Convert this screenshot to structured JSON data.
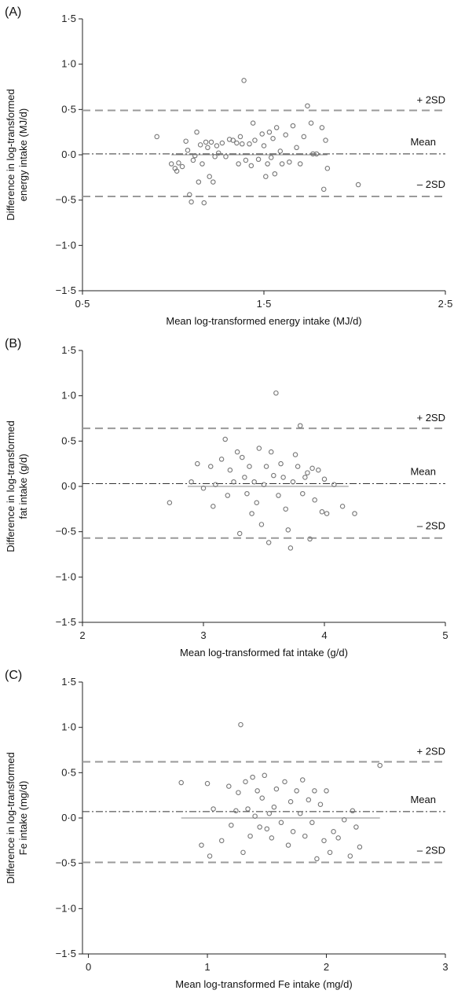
{
  "chart_data": [
    {
      "type": "scatter",
      "panel_label": "(A)",
      "xlabel": "Mean log-transformed energy intake (MJ/d)",
      "ylabel_lines": [
        "Difference in log-transformed",
        "energy intake (MJ/d)"
      ],
      "xlim": [
        0.5,
        2.5
      ],
      "ylim": [
        -1.5,
        1.5
      ],
      "xticks": [
        0.5,
        1.5,
        2.5
      ],
      "xtick_labels": [
        "0·5",
        "1·5",
        "2·5"
      ],
      "yticks": [
        -1.5,
        -1.0,
        -0.5,
        0.0,
        0.5,
        1.0,
        1.5
      ],
      "ytick_labels": [
        "−1·5",
        "−1·0",
        "−0·5",
        "0·0",
        "0·5",
        "1·0",
        "1·5"
      ],
      "reference_lines": {
        "upper": {
          "value": 0.49,
          "label": "+ 2SD"
        },
        "mean": {
          "value": 0.01,
          "label": "Mean"
        },
        "lower": {
          "value": -0.46,
          "label": "– 2SD"
        }
      },
      "zero_line": [
        0.99,
        1.85
      ],
      "points": [
        [
          0.91,
          0.2
        ],
        [
          0.99,
          -0.1
        ],
        [
          1.01,
          -0.15
        ],
        [
          1.02,
          -0.18
        ],
        [
          1.03,
          -0.09
        ],
        [
          1.05,
          -0.13
        ],
        [
          1.07,
          0.15
        ],
        [
          1.08,
          0.05
        ],
        [
          1.09,
          -0.44
        ],
        [
          1.1,
          -0.52
        ],
        [
          1.11,
          -0.06
        ],
        [
          1.12,
          -0.01
        ],
        [
          1.13,
          0.25
        ],
        [
          1.14,
          -0.3
        ],
        [
          1.15,
          0.11
        ],
        [
          1.16,
          -0.1
        ],
        [
          1.17,
          -0.53
        ],
        [
          1.18,
          0.14
        ],
        [
          1.19,
          0.08
        ],
        [
          1.2,
          -0.24
        ],
        [
          1.21,
          0.14
        ],
        [
          1.22,
          -0.3
        ],
        [
          1.23,
          -0.02
        ],
        [
          1.24,
          0.1
        ],
        [
          1.25,
          0.02
        ],
        [
          1.27,
          0.13
        ],
        [
          1.29,
          -0.02
        ],
        [
          1.31,
          0.17
        ],
        [
          1.33,
          0.16
        ],
        [
          1.35,
          0.13
        ],
        [
          1.36,
          -0.1
        ],
        [
          1.37,
          0.2
        ],
        [
          1.38,
          0.12
        ],
        [
          1.39,
          0.82
        ],
        [
          1.4,
          -0.06
        ],
        [
          1.42,
          0.12
        ],
        [
          1.43,
          -0.12
        ],
        [
          1.44,
          0.35
        ],
        [
          1.45,
          0.16
        ],
        [
          1.47,
          -0.05
        ],
        [
          1.49,
          0.23
        ],
        [
          1.5,
          0.1
        ],
        [
          1.51,
          -0.24
        ],
        [
          1.52,
          -0.1
        ],
        [
          1.53,
          0.25
        ],
        [
          1.54,
          -0.03
        ],
        [
          1.55,
          0.18
        ],
        [
          1.56,
          -0.21
        ],
        [
          1.57,
          0.3
        ],
        [
          1.59,
          0.04
        ],
        [
          1.6,
          -0.1
        ],
        [
          1.62,
          0.22
        ],
        [
          1.64,
          -0.08
        ],
        [
          1.66,
          0.32
        ],
        [
          1.68,
          0.08
        ],
        [
          1.7,
          -0.1
        ],
        [
          1.72,
          0.2
        ],
        [
          1.74,
          0.54
        ],
        [
          1.76,
          0.35
        ],
        [
          1.77,
          0.01
        ],
        [
          1.79,
          0.01
        ],
        [
          1.82,
          0.3
        ],
        [
          1.83,
          -0.38
        ],
        [
          1.84,
          0.16
        ],
        [
          1.85,
          -0.15
        ],
        [
          2.02,
          -0.33
        ]
      ]
    },
    {
      "type": "scatter",
      "panel_label": "(B)",
      "xlabel": "Mean log-transformed fat intake (g/d)",
      "ylabel_lines": [
        "Difference in log-transformed",
        "fat intake (g/d)"
      ],
      "xlim": [
        2,
        5
      ],
      "ylim": [
        -1.5,
        1.5
      ],
      "xticks": [
        2,
        3,
        4,
        5
      ],
      "xtick_labels": [
        "2",
        "3",
        "4",
        "5"
      ],
      "yticks": [
        -1.5,
        -1.0,
        -0.5,
        0.0,
        0.5,
        1.0,
        1.5
      ],
      "ytick_labels": [
        "−1·5",
        "−1·0",
        "−0·5",
        "0·0",
        "0·5",
        "1·0",
        "1·5"
      ],
      "reference_lines": {
        "upper": {
          "value": 0.64,
          "label": "+ 2SD"
        },
        "mean": {
          "value": 0.03,
          "label": "Mean"
        },
        "lower": {
          "value": -0.57,
          "label": "– 2SD"
        }
      },
      "zero_line": [
        2.87,
        4.2
      ],
      "points": [
        [
          2.72,
          -0.18
        ],
        [
          2.9,
          0.05
        ],
        [
          2.95,
          0.25
        ],
        [
          3.0,
          -0.02
        ],
        [
          3.06,
          0.22
        ],
        [
          3.08,
          -0.22
        ],
        [
          3.1,
          0.02
        ],
        [
          3.15,
          0.3
        ],
        [
          3.18,
          0.52
        ],
        [
          3.2,
          -0.1
        ],
        [
          3.22,
          0.18
        ],
        [
          3.25,
          0.05
        ],
        [
          3.28,
          0.38
        ],
        [
          3.3,
          -0.52
        ],
        [
          3.32,
          0.32
        ],
        [
          3.34,
          0.1
        ],
        [
          3.36,
          -0.08
        ],
        [
          3.38,
          0.22
        ],
        [
          3.4,
          -0.3
        ],
        [
          3.42,
          0.05
        ],
        [
          3.44,
          -0.18
        ],
        [
          3.46,
          0.42
        ],
        [
          3.48,
          -0.42
        ],
        [
          3.5,
          0.02
        ],
        [
          3.52,
          0.22
        ],
        [
          3.54,
          -0.62
        ],
        [
          3.56,
          0.38
        ],
        [
          3.58,
          0.12
        ],
        [
          3.6,
          1.03
        ],
        [
          3.62,
          -0.1
        ],
        [
          3.64,
          0.25
        ],
        [
          3.66,
          0.1
        ],
        [
          3.68,
          -0.25
        ],
        [
          3.7,
          -0.48
        ],
        [
          3.72,
          -0.68
        ],
        [
          3.74,
          0.05
        ],
        [
          3.76,
          0.35
        ],
        [
          3.78,
          0.22
        ],
        [
          3.8,
          0.67
        ],
        [
          3.82,
          -0.08
        ],
        [
          3.84,
          0.1
        ],
        [
          3.86,
          0.15
        ],
        [
          3.88,
          -0.58
        ],
        [
          3.9,
          0.2
        ],
        [
          3.92,
          -0.15
        ],
        [
          3.95,
          0.18
        ],
        [
          3.98,
          -0.28
        ],
        [
          4.0,
          0.08
        ],
        [
          4.02,
          -0.3
        ],
        [
          4.08,
          0.02
        ],
        [
          4.15,
          -0.22
        ],
        [
          4.25,
          -0.3
        ]
      ]
    },
    {
      "type": "scatter",
      "panel_label": "(C)",
      "xlabel": "Mean log-transformed Fe intake (mg/d)",
      "ylabel_lines": [
        "Difference in log-transformed",
        "Fe intake (mg/d)"
      ],
      "xlim": [
        -0.05,
        3
      ],
      "ylim": [
        -1.5,
        1.5
      ],
      "xticks": [
        0,
        1,
        2,
        3
      ],
      "xtick_labels": [
        "0",
        "1",
        "2",
        "3"
      ],
      "yticks": [
        -1.5,
        -1.0,
        -0.5,
        0.0,
        0.5,
        1.0,
        1.5
      ],
      "ytick_labels": [
        "−1·5",
        "−1·0",
        "−0·5",
        "0·0",
        "0·5",
        "1·0",
        "1·5"
      ],
      "reference_lines": {
        "upper": {
          "value": 0.62,
          "label": "+ 2SD"
        },
        "mean": {
          "value": 0.07,
          "label": "Mean"
        },
        "lower": {
          "value": -0.49,
          "label": "– 2SD"
        }
      },
      "zero_line": [
        0.78,
        2.45
      ],
      "points": [
        [
          0.78,
          0.39
        ],
        [
          0.95,
          -0.3
        ],
        [
          1.0,
          0.38
        ],
        [
          1.02,
          -0.42
        ],
        [
          1.05,
          0.1
        ],
        [
          1.12,
          -0.25
        ],
        [
          1.18,
          0.35
        ],
        [
          1.2,
          -0.08
        ],
        [
          1.24,
          0.08
        ],
        [
          1.26,
          0.28
        ],
        [
          1.28,
          1.03
        ],
        [
          1.3,
          -0.38
        ],
        [
          1.32,
          0.4
        ],
        [
          1.34,
          0.1
        ],
        [
          1.36,
          -0.2
        ],
        [
          1.38,
          0.45
        ],
        [
          1.4,
          0.02
        ],
        [
          1.42,
          0.3
        ],
        [
          1.44,
          -0.1
        ],
        [
          1.46,
          0.22
        ],
        [
          1.48,
          0.47
        ],
        [
          1.5,
          -0.12
        ],
        [
          1.52,
          0.05
        ],
        [
          1.54,
          -0.22
        ],
        [
          1.56,
          0.12
        ],
        [
          1.58,
          0.32
        ],
        [
          1.62,
          -0.05
        ],
        [
          1.65,
          0.4
        ],
        [
          1.68,
          -0.3
        ],
        [
          1.7,
          0.18
        ],
        [
          1.72,
          -0.15
        ],
        [
          1.75,
          0.3
        ],
        [
          1.78,
          0.05
        ],
        [
          1.8,
          0.42
        ],
        [
          1.82,
          -0.2
        ],
        [
          1.85,
          0.2
        ],
        [
          1.88,
          -0.05
        ],
        [
          1.9,
          0.3
        ],
        [
          1.92,
          -0.45
        ],
        [
          1.95,
          0.15
        ],
        [
          1.98,
          -0.25
        ],
        [
          2.0,
          0.3
        ],
        [
          2.03,
          -0.38
        ],
        [
          2.06,
          -0.15
        ],
        [
          2.1,
          -0.22
        ],
        [
          2.15,
          -0.02
        ],
        [
          2.2,
          -0.42
        ],
        [
          2.22,
          0.08
        ],
        [
          2.25,
          -0.1
        ],
        [
          2.28,
          -0.32
        ],
        [
          2.45,
          0.58
        ]
      ]
    }
  ]
}
